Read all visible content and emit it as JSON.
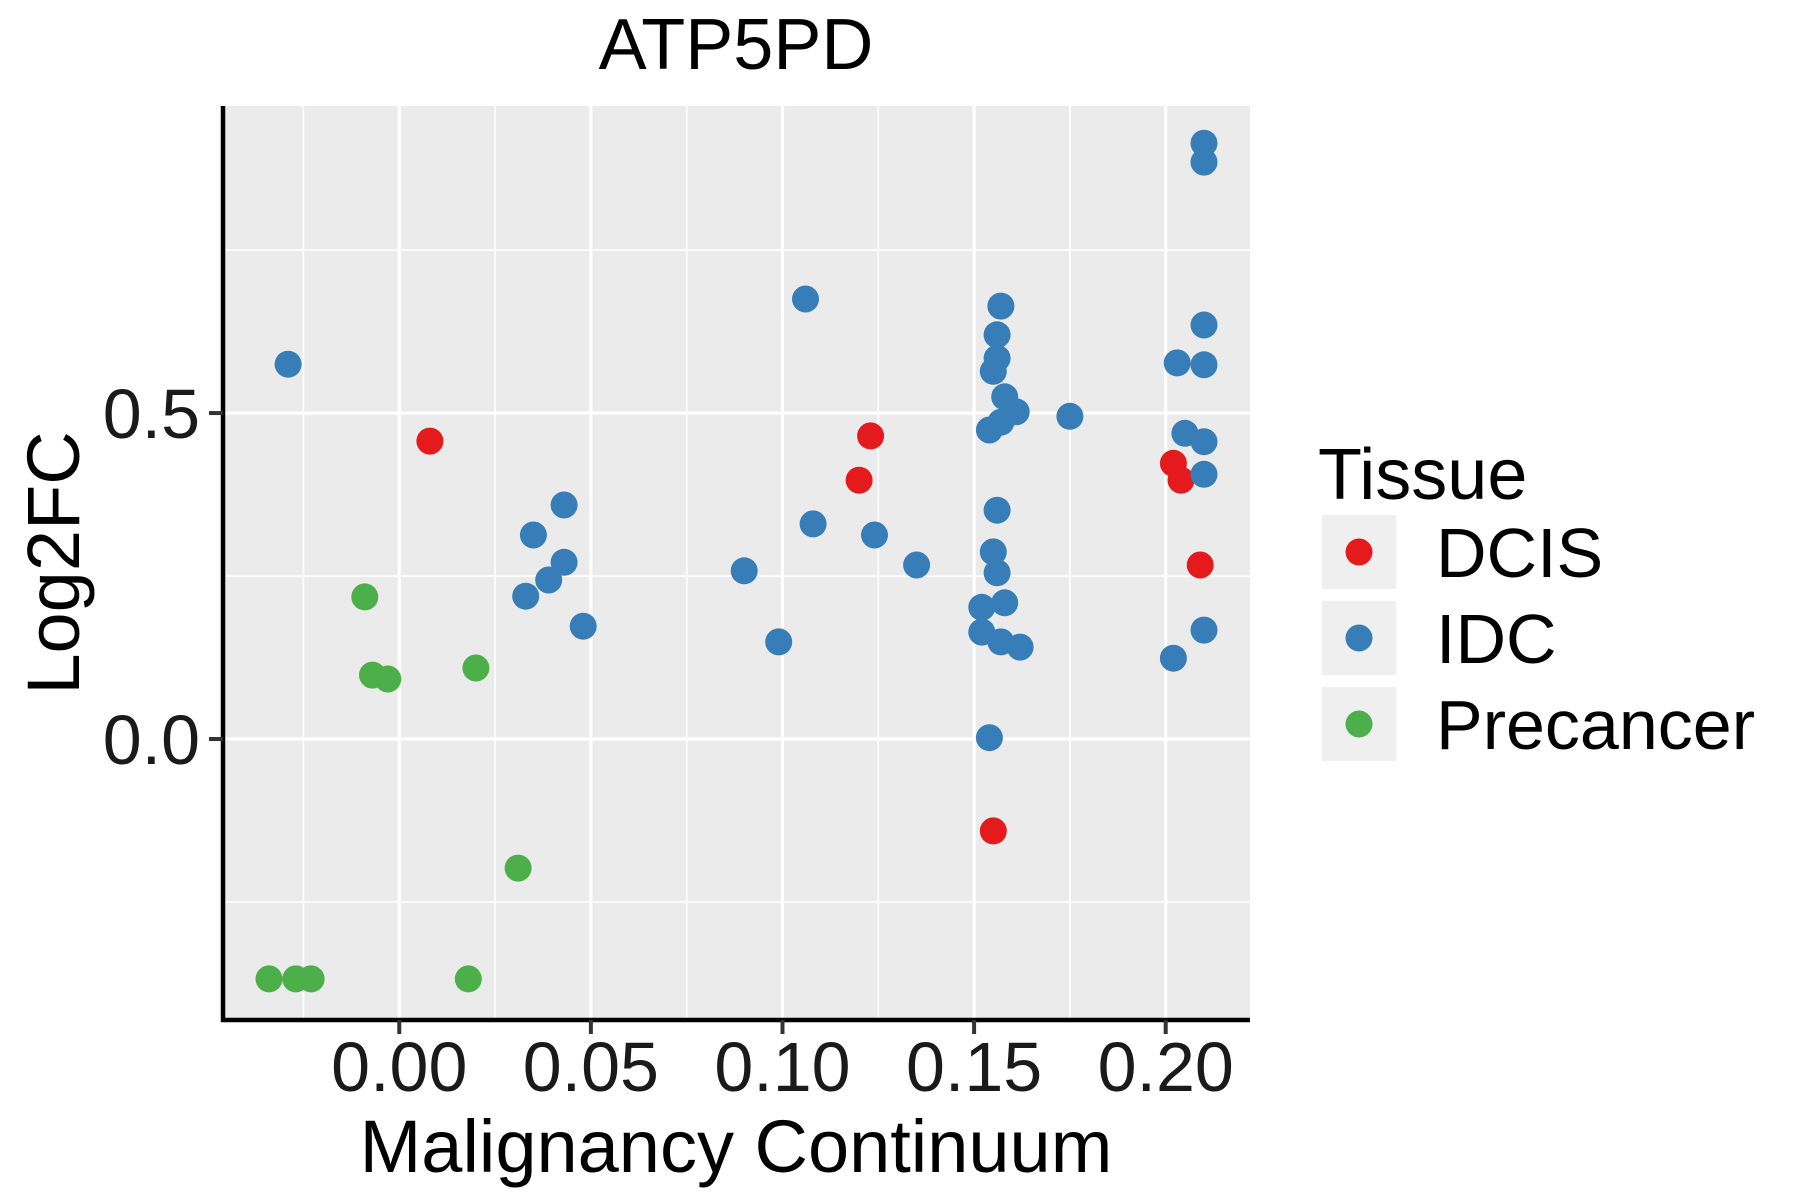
{
  "chart_data": {
    "type": "scatter",
    "title": "ATP5PD",
    "xlabel": "Malignancy Continuum",
    "ylabel": "Log2FC",
    "xlim": [
      -0.046,
      0.222
    ],
    "ylim": [
      -0.431,
      0.971
    ],
    "x_major_ticks": [
      0.0,
      0.05,
      0.1,
      0.15,
      0.2
    ],
    "x_tick_labels": [
      "0.00",
      "0.05",
      "0.10",
      "0.15",
      "0.20"
    ],
    "x_minor_ticks": [
      -0.025,
      0.025,
      0.075,
      0.125,
      0.175
    ],
    "y_major_ticks": [
      0.0,
      0.5
    ],
    "y_tick_labels": [
      "0.0",
      "0.5"
    ],
    "y_minor_ticks": [
      -0.25,
      0.25,
      0.75
    ],
    "grid": true,
    "panel_bg": "#EBEBEB",
    "grid_color": "#FFFFFF",
    "axis_color": "#000000",
    "tick_color": "#333333",
    "point_radius": 13.5,
    "legend": {
      "title": "Tissue",
      "position": "right",
      "key_bg": "#EFEFEF"
    },
    "series": [
      {
        "name": "DCIS",
        "color": "#E41A1C",
        "points": [
          [
            0.008,
            0.457
          ],
          [
            0.123,
            0.465
          ],
          [
            0.12,
            0.397
          ],
          [
            0.202,
            0.423
          ],
          [
            0.204,
            0.397
          ],
          [
            0.209,
            0.267
          ],
          [
            0.155,
            -0.141
          ]
        ]
      },
      {
        "name": "IDC",
        "color": "#377EB8",
        "points": [
          [
            -0.029,
            0.575
          ],
          [
            0.035,
            0.313
          ],
          [
            0.043,
            0.359
          ],
          [
            0.043,
            0.271
          ],
          [
            0.039,
            0.244
          ],
          [
            0.033,
            0.219
          ],
          [
            0.048,
            0.173
          ],
          [
            0.09,
            0.258
          ],
          [
            0.099,
            0.149
          ],
          [
            0.106,
            0.675
          ],
          [
            0.108,
            0.33
          ],
          [
            0.124,
            0.313
          ],
          [
            0.135,
            0.267
          ],
          [
            0.157,
            0.664
          ],
          [
            0.156,
            0.62
          ],
          [
            0.156,
            0.584
          ],
          [
            0.155,
            0.564
          ],
          [
            0.158,
            0.525
          ],
          [
            0.161,
            0.502
          ],
          [
            0.157,
            0.486
          ],
          [
            0.154,
            0.474
          ],
          [
            0.156,
            0.351
          ],
          [
            0.155,
            0.287
          ],
          [
            0.156,
            0.255
          ],
          [
            0.152,
            0.202
          ],
          [
            0.158,
            0.209
          ],
          [
            0.152,
            0.164
          ],
          [
            0.157,
            0.149
          ],
          [
            0.162,
            0.141
          ],
          [
            0.154,
            0.002
          ],
          [
            0.175,
            0.495
          ],
          [
            0.21,
            0.914
          ],
          [
            0.21,
            0.885
          ],
          [
            0.21,
            0.635
          ],
          [
            0.203,
            0.577
          ],
          [
            0.21,
            0.574
          ],
          [
            0.205,
            0.469
          ],
          [
            0.21,
            0.456
          ],
          [
            0.21,
            0.406
          ],
          [
            0.21,
            0.167
          ],
          [
            0.202,
            0.124
          ]
        ]
      },
      {
        "name": "Precancer",
        "color": "#4DAF4A",
        "points": [
          [
            -0.009,
            0.218
          ],
          [
            -0.007,
            0.098
          ],
          [
            -0.003,
            0.092
          ],
          [
            0.02,
            0.109
          ],
          [
            0.031,
            -0.198
          ],
          [
            -0.034,
            -0.368
          ],
          [
            -0.027,
            -0.368
          ],
          [
            -0.023,
            -0.368
          ],
          [
            0.018,
            -0.368
          ]
        ]
      }
    ]
  }
}
